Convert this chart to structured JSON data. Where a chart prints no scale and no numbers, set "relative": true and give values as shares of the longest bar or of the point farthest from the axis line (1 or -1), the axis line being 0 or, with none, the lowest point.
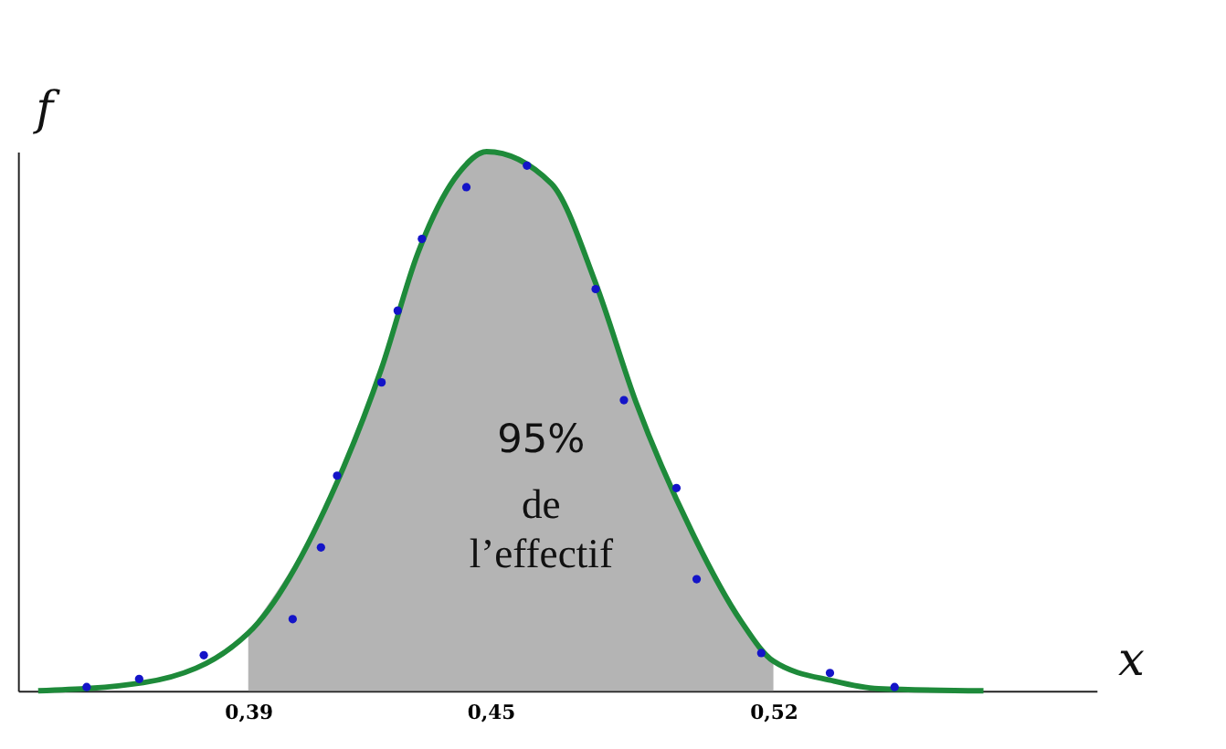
{
  "chart_data": {
    "type": "line",
    "xlabel": "x",
    "ylabel": "f",
    "relative": true,
    "grid": false,
    "xlim": [
      0.333,
      0.6
    ],
    "xticks": [
      {
        "value": 0.39,
        "label": "0,39"
      },
      {
        "value": 0.45,
        "label": "0,45"
      },
      {
        "value": 0.52,
        "label": "0,52"
      }
    ],
    "annotations": [
      "95%",
      "de l’effectif"
    ],
    "series": [
      {
        "type": "area",
        "color": "#b4b4b4",
        "x": [
          0.39,
          0.412,
          0.423,
          0.432,
          0.442,
          0.449,
          0.465,
          0.476,
          0.486,
          0.5,
          0.512,
          0.52
        ],
        "values": [
          0.107,
          0.387,
          0.598,
          0.812,
          0.959,
          1,
          0.941,
          0.756,
          0.535,
          0.292,
          0.129,
          0.055
        ]
      },
      {
        "color": "#1e8a3a",
        "line_style": "solid",
        "x": [
          0.338,
          0.364,
          0.39,
          0.412,
          0.423,
          0.432,
          0.442,
          0.449,
          0.465,
          0.476,
          0.486,
          0.5,
          0.512,
          0.52,
          0.535,
          0.546,
          0.572
        ],
        "values": [
          0,
          0.015,
          0.107,
          0.387,
          0.598,
          0.812,
          0.959,
          1,
          0.941,
          0.756,
          0.535,
          0.292,
          0.129,
          0.055,
          0.018,
          0.004,
          0
        ]
      },
      {
        "type": "scatter",
        "color": "#1414c8",
        "marker": "circle",
        "x": [
          0.35,
          0.363,
          0.379,
          0.401,
          0.408,
          0.412,
          0.423,
          0.427,
          0.433,
          0.444,
          0.459,
          0.476,
          0.483,
          0.496,
          0.501,
          0.517,
          0.534,
          0.55
        ],
        "values": [
          0.007,
          0.022,
          0.066,
          0.133,
          0.266,
          0.399,
          0.572,
          0.705,
          0.838,
          0.934,
          0.974,
          0.745,
          0.539,
          0.376,
          0.207,
          0.07,
          0.033,
          0.007
        ]
      }
    ]
  }
}
